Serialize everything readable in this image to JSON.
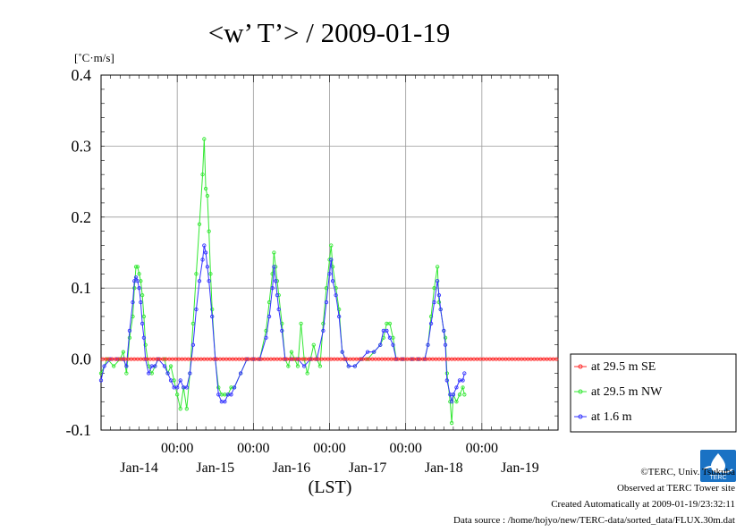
{
  "colors": {
    "se": "#ff2a2a",
    "nw": "#33e833",
    "m16": "#3333ff",
    "grid": "#999999",
    "zero": "#ff0000",
    "logo": "#1a72c4"
  },
  "footer": {
    "copyright": "©TERC, Univ. Tsukuba",
    "observed": "Observed at TERC Tower site",
    "created": "Created Automatically at 2009-01-19/23:32:11",
    "source": "Data source : /home/hojyo/new/TERC-data/sorted_data/FLUX.30m.dat",
    "logo_text": "TERC"
  },
  "chart_data": {
    "type": "line",
    "title": "<w’ T’> / 2009-01-19",
    "ylabel": "[˚C·m/s]",
    "xlabel": "(LST)",
    "ylim": [
      -0.1,
      0.4
    ],
    "yticks": [
      "0.4",
      "0.3",
      "0.2",
      "0.1",
      "0.0",
      "-0.1"
    ],
    "xlim_hours": [
      0,
      144
    ],
    "x_time_labels": [
      "00:00",
      "00:00",
      "00:00",
      "00:00",
      "00:00"
    ],
    "x_time_label_hours": [
      24,
      48,
      72,
      96,
      120
    ],
    "x_date_labels": [
      "Jan-14",
      "Jan-15",
      "Jan-16",
      "Jan-17",
      "Jan-18",
      "Jan-19"
    ],
    "x_date_label_hours": [
      12,
      36,
      60,
      84,
      108,
      132
    ],
    "grid": true,
    "legend_position": "right",
    "series": [
      {
        "name": "at 29.5 m SE",
        "color_key": "se",
        "points": [
          [
            0,
            0
          ],
          [
            144,
            0
          ]
        ],
        "constant_value": 0.0
      },
      {
        "name": "at 29.5 m NW",
        "color_key": "nw",
        "points": [
          [
            0,
            -0.02
          ],
          [
            2,
            0
          ],
          [
            4,
            -0.01
          ],
          [
            6,
            0
          ],
          [
            7,
            0.01
          ],
          [
            8,
            -0.02
          ],
          [
            9,
            0.03
          ],
          [
            10,
            0.06
          ],
          [
            10.5,
            0.1
          ],
          [
            11,
            0.13
          ],
          [
            11.5,
            0.13
          ],
          [
            12,
            0.12
          ],
          [
            12.5,
            0.11
          ],
          [
            13,
            0.09
          ],
          [
            13.5,
            0.06
          ],
          [
            14,
            0.02
          ],
          [
            15,
            -0.01
          ],
          [
            16,
            -0.02
          ],
          [
            17,
            -0.01
          ],
          [
            18,
            0
          ],
          [
            20,
            0
          ],
          [
            21,
            -0.02
          ],
          [
            22,
            -0.01
          ],
          [
            23,
            -0.03
          ],
          [
            24,
            -0.05
          ],
          [
            25,
            -0.07
          ],
          [
            26,
            -0.04
          ],
          [
            27,
            -0.07
          ],
          [
            28,
            -0.02
          ],
          [
            29,
            0.05
          ],
          [
            30,
            0.12
          ],
          [
            31,
            0.19
          ],
          [
            32,
            0.26
          ],
          [
            32.5,
            0.31
          ],
          [
            33,
            0.24
          ],
          [
            33.5,
            0.23
          ],
          [
            34,
            0.18
          ],
          [
            34.5,
            0.12
          ],
          [
            35,
            0.07
          ],
          [
            36,
            0
          ],
          [
            37,
            -0.04
          ],
          [
            38,
            -0.05
          ],
          [
            39,
            -0.05
          ],
          [
            40,
            -0.05
          ],
          [
            41,
            -0.04
          ],
          [
            42,
            -0.04
          ],
          [
            44,
            -0.02
          ],
          [
            46,
            0
          ],
          [
            48,
            0
          ],
          [
            50,
            0
          ],
          [
            52,
            0.04
          ],
          [
            53,
            0.08
          ],
          [
            54,
            0.12
          ],
          [
            54.5,
            0.15
          ],
          [
            55,
            0.13
          ],
          [
            55.5,
            0.11
          ],
          [
            56,
            0.09
          ],
          [
            57,
            0.05
          ],
          [
            58,
            0
          ],
          [
            59,
            -0.01
          ],
          [
            60,
            0.01
          ],
          [
            61,
            0
          ],
          [
            62,
            -0.01
          ],
          [
            63,
            0.05
          ],
          [
            64,
            0
          ],
          [
            65,
            -0.02
          ],
          [
            66,
            0
          ],
          [
            67,
            0.02
          ],
          [
            68,
            0
          ],
          [
            69,
            -0.01
          ],
          [
            70,
            0.05
          ],
          [
            71,
            0.1
          ],
          [
            72,
            0.14
          ],
          [
            72.5,
            0.16
          ],
          [
            73,
            0.13
          ],
          [
            74,
            0.1
          ],
          [
            75,
            0.07
          ],
          [
            76,
            0.01
          ],
          [
            77,
            0
          ],
          [
            78,
            -0.01
          ],
          [
            80,
            -0.01
          ],
          [
            82,
            0
          ],
          [
            84,
            0
          ],
          [
            86,
            0.01
          ],
          [
            88,
            0.02
          ],
          [
            89,
            0.03
          ],
          [
            90,
            0.05
          ],
          [
            91,
            0.05
          ],
          [
            92,
            0.03
          ],
          [
            93,
            0
          ],
          [
            95,
            0
          ],
          [
            98,
            0
          ],
          [
            100,
            0
          ],
          [
            102,
            0
          ],
          [
            103,
            0.02
          ],
          [
            104,
            0.06
          ],
          [
            105,
            0.1
          ],
          [
            106,
            0.13
          ],
          [
            106.5,
            0.08
          ],
          [
            107,
            0.07
          ],
          [
            108,
            0.04
          ],
          [
            108.5,
            0.03
          ],
          [
            109,
            -0.02
          ],
          [
            110,
            -0.06
          ],
          [
            110.5,
            -0.09
          ],
          [
            111,
            -0.05
          ],
          [
            112,
            -0.06
          ],
          [
            113,
            -0.05
          ],
          [
            114,
            -0.04
          ],
          [
            114.5,
            -0.05
          ]
        ]
      },
      {
        "name": "at 1.6 m",
        "color_key": "m16",
        "points": [
          [
            0,
            -0.03
          ],
          [
            1,
            -0.01
          ],
          [
            3,
            0
          ],
          [
            5,
            0
          ],
          [
            7,
            0
          ],
          [
            8,
            -0.01
          ],
          [
            9,
            0.04
          ],
          [
            10,
            0.08
          ],
          [
            10.5,
            0.11
          ],
          [
            11,
            0.115
          ],
          [
            11.5,
            0.11
          ],
          [
            12,
            0.1
          ],
          [
            12.5,
            0.08
          ],
          [
            13,
            0.05
          ],
          [
            13.5,
            0.03
          ],
          [
            14,
            0
          ],
          [
            15,
            -0.02
          ],
          [
            16,
            -0.01
          ],
          [
            17,
            -0.01
          ],
          [
            18,
            0
          ],
          [
            20,
            -0.01
          ],
          [
            21,
            -0.02
          ],
          [
            22,
            -0.03
          ],
          [
            23,
            -0.04
          ],
          [
            24,
            -0.04
          ],
          [
            25,
            -0.03
          ],
          [
            26,
            -0.04
          ],
          [
            27,
            -0.04
          ],
          [
            28,
            -0.02
          ],
          [
            29,
            0.02
          ],
          [
            30,
            0.07
          ],
          [
            31,
            0.11
          ],
          [
            32,
            0.14
          ],
          [
            32.5,
            0.16
          ],
          [
            33,
            0.15
          ],
          [
            33.5,
            0.13
          ],
          [
            34,
            0.11
          ],
          [
            35,
            0.06
          ],
          [
            36,
            0
          ],
          [
            37,
            -0.05
          ],
          [
            38,
            -0.06
          ],
          [
            39,
            -0.06
          ],
          [
            40,
            -0.05
          ],
          [
            41,
            -0.05
          ],
          [
            42,
            -0.04
          ],
          [
            44,
            -0.02
          ],
          [
            46,
            0
          ],
          [
            48,
            0
          ],
          [
            50,
            0
          ],
          [
            52,
            0.03
          ],
          [
            53,
            0.06
          ],
          [
            54,
            0.1
          ],
          [
            54.5,
            0.13
          ],
          [
            55,
            0.11
          ],
          [
            55.5,
            0.09
          ],
          [
            56,
            0.07
          ],
          [
            57,
            0.04
          ],
          [
            58,
            0
          ],
          [
            60,
            0
          ],
          [
            62,
            0
          ],
          [
            64,
            -0.01
          ],
          [
            66,
            0
          ],
          [
            68,
            0
          ],
          [
            70,
            0.04
          ],
          [
            71,
            0.08
          ],
          [
            72,
            0.12
          ],
          [
            72.5,
            0.14
          ],
          [
            73,
            0.11
          ],
          [
            74,
            0.09
          ],
          [
            75,
            0.06
          ],
          [
            76,
            0.01
          ],
          [
            77,
            0
          ],
          [
            78,
            -0.01
          ],
          [
            80,
            -0.01
          ],
          [
            82,
            0
          ],
          [
            84,
            0.01
          ],
          [
            86,
            0.01
          ],
          [
            88,
            0.02
          ],
          [
            89,
            0.04
          ],
          [
            90,
            0.04
          ],
          [
            91,
            0.03
          ],
          [
            92,
            0.02
          ],
          [
            93,
            0
          ],
          [
            95,
            0
          ],
          [
            98,
            0
          ],
          [
            100,
            0
          ],
          [
            102,
            0
          ],
          [
            103,
            0.02
          ],
          [
            104,
            0.05
          ],
          [
            105,
            0.08
          ],
          [
            106,
            0.11
          ],
          [
            106.5,
            0.09
          ],
          [
            107,
            0.07
          ],
          [
            108,
            0.04
          ],
          [
            108.5,
            0.02
          ],
          [
            109,
            -0.03
          ],
          [
            110,
            -0.05
          ],
          [
            110.5,
            -0.06
          ],
          [
            111,
            -0.05
          ],
          [
            112,
            -0.04
          ],
          [
            113,
            -0.03
          ],
          [
            114,
            -0.03
          ],
          [
            114.5,
            -0.02
          ]
        ]
      }
    ]
  }
}
